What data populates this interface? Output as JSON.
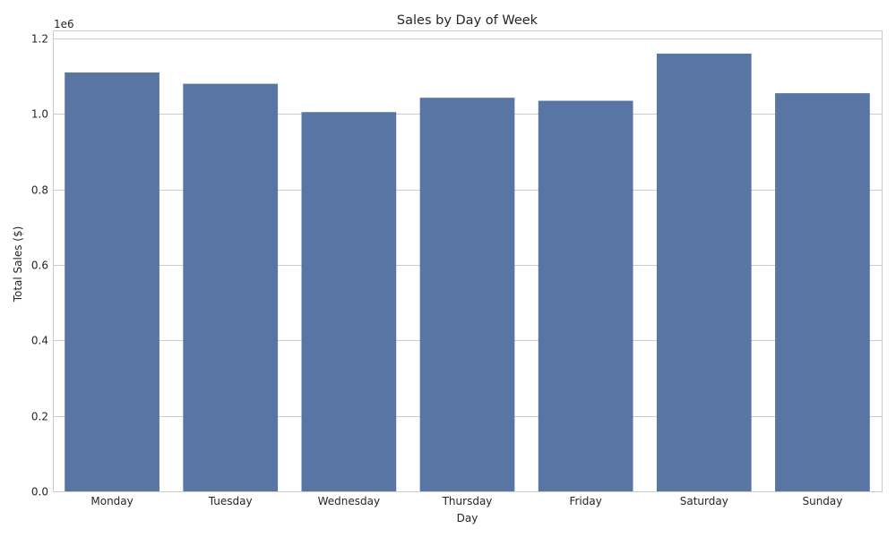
{
  "chart_data": {
    "type": "bar",
    "title": "Sales by Day of Week",
    "xlabel": "Day",
    "ylabel": "Total Sales ($)",
    "y_offset_label": "1e6",
    "categories": [
      "Monday",
      "Tuesday",
      "Wednesday",
      "Thursday",
      "Friday",
      "Saturday",
      "Sunday"
    ],
    "values": [
      1110000,
      1080000,
      1005000,
      1043000,
      1035000,
      1160000,
      1055000
    ],
    "ylim": [
      0,
      1200000
    ],
    "yticks": [
      0,
      200000,
      400000,
      600000,
      800000,
      1000000,
      1200000
    ],
    "ytick_labels": [
      "0.0",
      "0.2",
      "0.4",
      "0.6",
      "0.8",
      "1.0",
      "1.2"
    ],
    "grid": true,
    "colors": {
      "bar": "#5975a4",
      "grid": "#cccccc",
      "spine": "#cccccc",
      "background": "#ffffff"
    }
  }
}
